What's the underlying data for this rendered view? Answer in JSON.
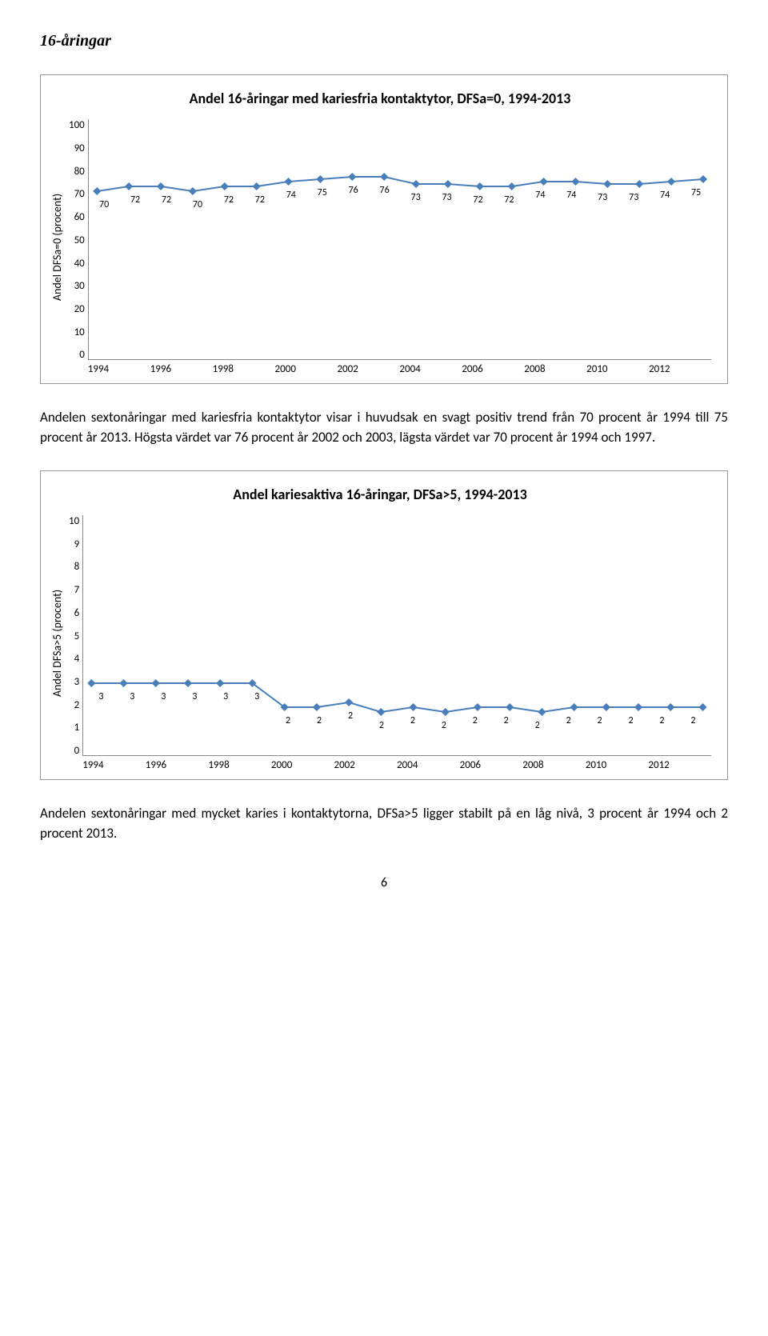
{
  "heading": "16-åringar",
  "chart1": {
    "title": "Andel 16-åringar med kariesfria kontaktytor, DFSa=0, 1994-2013",
    "ylabel": "Andel DFSa=0 (procent)",
    "ymin": 0,
    "ymax": 100,
    "ytick_step": 10,
    "yticks": [
      "100",
      "90",
      "80",
      "70",
      "60",
      "50",
      "40",
      "30",
      "20",
      "10",
      "0"
    ],
    "xticks": [
      "1994",
      "1996",
      "1998",
      "2000",
      "2002",
      "2004",
      "2006",
      "2008",
      "2010",
      "2012"
    ],
    "marker_color": "#4a7ebb",
    "line_color": "#4a7ebb",
    "values": [
      70,
      72,
      72,
      70,
      72,
      72,
      74,
      75,
      76,
      76,
      73,
      73,
      72,
      72,
      74,
      74,
      73,
      73,
      74,
      75
    ],
    "labels": [
      "70",
      "72",
      "72",
      "70",
      "72",
      "72",
      "74",
      "75",
      "76",
      "76",
      "73",
      "73",
      "72",
      "72",
      "74",
      "74",
      "73",
      "73",
      "74",
      "75"
    ]
  },
  "paragraph1": "Andelen sextonåringar med kariesfria kontaktytor visar i huvudsak en svagt positiv trend från 70 procent år 1994 till 75 procent år 2013. Högsta värdet var 76 procent år 2002 och 2003, lägsta värdet var 70 procent år 1994 och 1997.",
  "chart2": {
    "title": "Andel kariesaktiva 16-åringar, DFSa>5, 1994-2013",
    "ylabel": "Andel DFSa>5 (procent)",
    "ymin": 0,
    "ymax": 10,
    "ytick_step": 1,
    "yticks": [
      "10",
      "9",
      "8",
      "7",
      "6",
      "5",
      "4",
      "3",
      "2",
      "1",
      "0"
    ],
    "xticks": [
      "1994",
      "1996",
      "1998",
      "2000",
      "2002",
      "2004",
      "2006",
      "2008",
      "2010",
      "2012"
    ],
    "marker_color": "#4a7ebb",
    "line_color": "#4a7ebb",
    "values": [
      3,
      3,
      3,
      3,
      3,
      3,
      2,
      2,
      2.2,
      1.8,
      2,
      1.8,
      2,
      2,
      1.8,
      2,
      2,
      2,
      2,
      2
    ],
    "labels": [
      "3",
      "3",
      "3",
      "3",
      "3",
      "3",
      "2",
      "2",
      "2",
      "2",
      "2",
      "2",
      "2",
      "2",
      "2",
      "2",
      "2",
      "2",
      "2",
      "2"
    ]
  },
  "paragraph2": "Andelen sextonåringar med mycket karies i kontaktytorna, DFSa>5 ligger stabilt på en låg nivå, 3 procent år 1994 och 2 procent 2013.",
  "page_number": "6"
}
